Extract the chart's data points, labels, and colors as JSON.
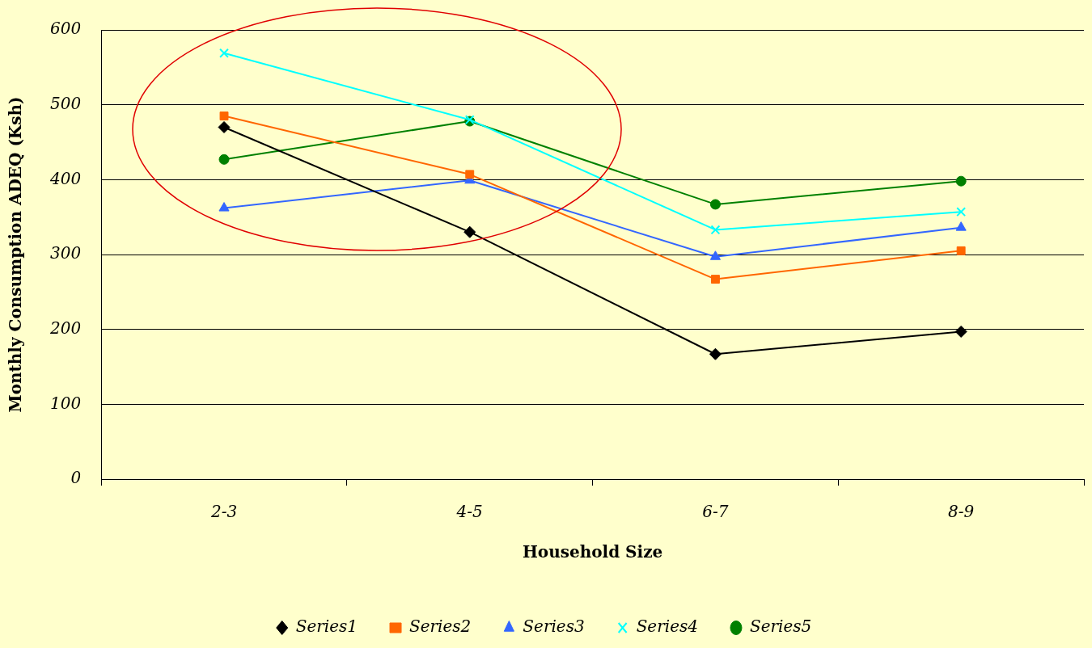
{
  "chart_data": {
    "type": "line",
    "xlabel": "Household Size",
    "ylabel": "Monthly Consumption ADEQ (Ksh)",
    "categories": [
      "2-3",
      "4-5",
      "6-7",
      "8-9"
    ],
    "ylim": [
      0,
      600
    ],
    "yticks": [
      0,
      100,
      200,
      300,
      400,
      500,
      600
    ],
    "grid": "y",
    "legend": "bottom",
    "line_style": "solid",
    "series": [
      {
        "name": "Series1",
        "color": "#000000",
        "marker": "diamond",
        "values": [
          470,
          330,
          167,
          197
        ]
      },
      {
        "name": "Series2",
        "color": "#ff6600",
        "marker": "square",
        "values": [
          485,
          407,
          267,
          305
        ]
      },
      {
        "name": "Series3",
        "color": "#3366ff",
        "marker": "triangle",
        "values": [
          362,
          399,
          297,
          336
        ]
      },
      {
        "name": "Series4",
        "color": "#00ffff",
        "marker": "cross",
        "values": [
          569,
          480,
          333,
          357
        ]
      },
      {
        "name": "Series5",
        "color": "#008000",
        "marker": "circle",
        "values": [
          427,
          478,
          367,
          398
        ]
      }
    ]
  }
}
